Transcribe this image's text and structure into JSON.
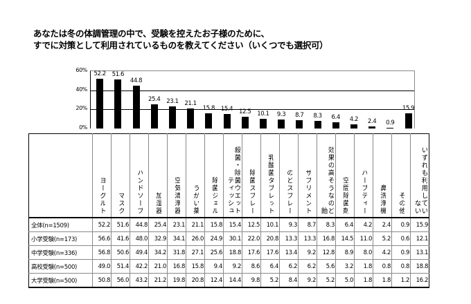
{
  "title": {
    "line1": "あなたは冬の体調管理の中で、受験を控えたお子様のために、",
    "line2": "すでに対策として利用されているものを教えてください（いくつでも選択可）"
  },
  "chart_data": {
    "type": "bar",
    "title": "あなたは冬の体調管理の中で、受験を控えたお子様のために、すでに対策として利用されているものを教えてください（いくつでも選択可）",
    "xlabel": "",
    "ylabel": "%",
    "ylim": [
      0,
      60
    ],
    "yticks": [
      "0%",
      "20%",
      "40%",
      "60%"
    ],
    "grid": true,
    "categories": [
      "ヨーグルト",
      "マスク",
      "ハンドソープ",
      "加湿器",
      "空気清浄器",
      "うがい薬",
      "除菌ジェル",
      "殺菌・除菌ウエットティッシュ",
      "除菌スプレー",
      "乳酸菌タブレット",
      "のどスプレー",
      "サプリメント",
      "効果の高そうなのど飴",
      "空間除菌剤",
      "ハーブティー",
      "鼻洗浄機",
      "その他",
      "いずれも利用していない"
    ],
    "values": [
      52.2,
      51.6,
      44.8,
      25.4,
      23.1,
      21.1,
      15.8,
      15.4,
      12.5,
      10.1,
      9.3,
      8.7,
      8.3,
      6.4,
      4.2,
      2.4,
      0.9,
      15.9
    ],
    "value_labels": [
      "52.2",
      "51.6",
      "44.8",
      "25.4",
      "23.1",
      "21.1",
      "15.8",
      "15.4",
      "12.5",
      "10.1",
      "9.3",
      "8.7",
      "8.3",
      "6.4",
      "4.2",
      "2.4",
      "0.9",
      "15.9"
    ],
    "series_label": "全体(n=1509)"
  },
  "table": {
    "headers": [
      {
        "line1": "ヨーグルト",
        "line2": ""
      },
      {
        "line1": "マスク",
        "line2": ""
      },
      {
        "line1": "ハンドソープ",
        "line2": ""
      },
      {
        "line1": "加湿器",
        "line2": ""
      },
      {
        "line1": "空気清浄器",
        "line2": ""
      },
      {
        "line1": "うがい薬",
        "line2": ""
      },
      {
        "line1": "除菌ジェル",
        "line2": ""
      },
      {
        "line1": "殺菌・除菌ウエット",
        "line2": "ティッシュ"
      },
      {
        "line1": "除菌スプレー",
        "line2": ""
      },
      {
        "line1": "乳酸菌タブレット",
        "line2": ""
      },
      {
        "line1": "のどスプレー",
        "line2": ""
      },
      {
        "line1": "サプリメント",
        "line2": ""
      },
      {
        "line1": "効果の高そうなのど",
        "line2": "飴"
      },
      {
        "line1": "空間除菌剤",
        "line2": ""
      },
      {
        "line1": "ハーブティー",
        "line2": ""
      },
      {
        "line1": "鼻洗浄機",
        "line2": ""
      },
      {
        "line1": "その他",
        "line2": ""
      },
      {
        "line1": "いずれも利用してい",
        "line2": "ない"
      }
    ],
    "rows": [
      {
        "label": "全体(n=1509)",
        "values": [
          "52.2",
          "51.6",
          "44.8",
          "25.4",
          "23.1",
          "21.1",
          "15.8",
          "15.4",
          "12.5",
          "10.1",
          "9.3",
          "8.7",
          "8.3",
          "6.4",
          "4.2",
          "2.4",
          "0.9",
          "15.9"
        ]
      },
      {
        "label": "小学受験(n=173)",
        "values": [
          "56.6",
          "41.6",
          "48.0",
          "32.9",
          "34.1",
          "26.0",
          "24.9",
          "30.1",
          "22.0",
          "20.8",
          "13.3",
          "13.3",
          "16.8",
          "14.5",
          "11.0",
          "5.2",
          "0.6",
          "12.1"
        ]
      },
      {
        "label": "中学受験(n=336)",
        "values": [
          "56.8",
          "50.6",
          "49.4",
          "34.2",
          "31.8",
          "27.1",
          "25.6",
          "18.8",
          "17.6",
          "17.6",
          "13.4",
          "9.2",
          "12.8",
          "8.9",
          "8.0",
          "4.2",
          "0.9",
          "13.1"
        ]
      },
      {
        "label": "高校受験(n=500)",
        "values": [
          "49.0",
          "51.4",
          "42.2",
          "21.0",
          "16.8",
          "15.8",
          "9.4",
          "9.2",
          "8.6",
          "6.4",
          "6.2",
          "6.2",
          "5.6",
          "3.2",
          "1.8",
          "0.8",
          "0.8",
          "18.8"
        ]
      },
      {
        "label": "大学受験(n=500)",
        "values": [
          "50.8",
          "56.0",
          "43.2",
          "21.2",
          "19.8",
          "20.8",
          "12.4",
          "14.4",
          "9.8",
          "5.2",
          "8.4",
          "9.2",
          "5.2",
          "5.0",
          "1.8",
          "1.8",
          "1.2",
          "16.2"
        ]
      }
    ]
  },
  "colors": {
    "bar": "#000000",
    "grid": "#000000",
    "border": "#888888"
  }
}
